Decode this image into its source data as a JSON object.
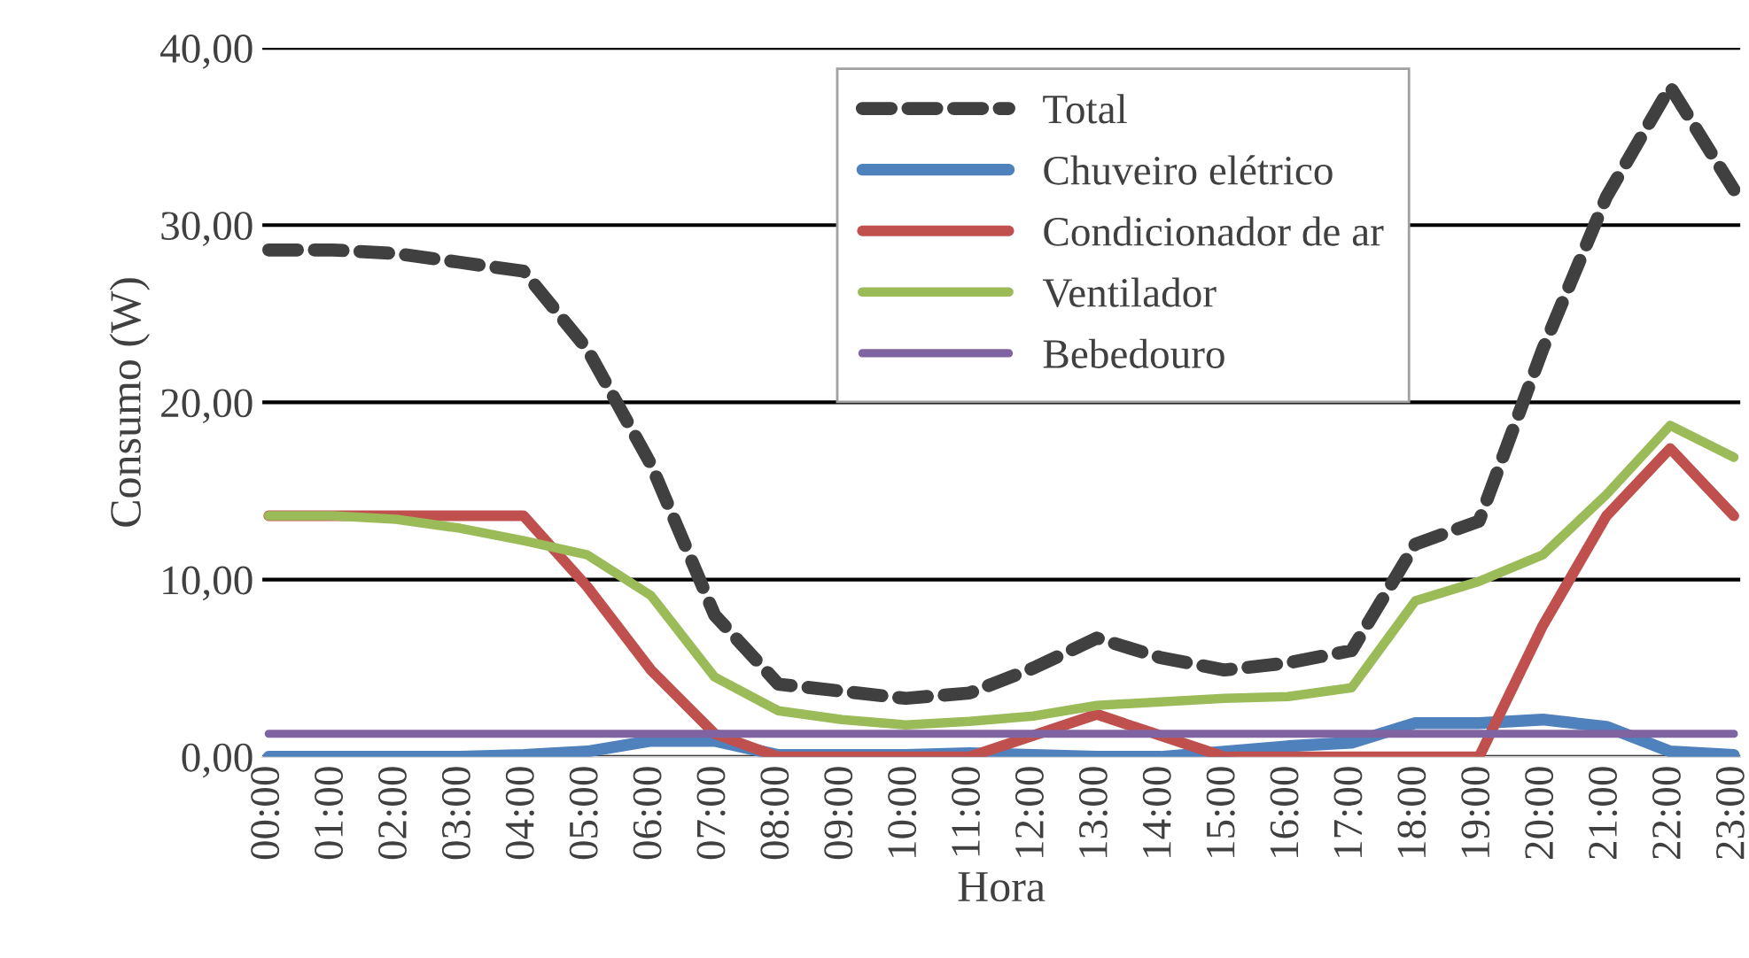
{
  "chart_data": {
    "type": "line",
    "xlabel": "Hora",
    "ylabel": "Consumo (W)",
    "categories": [
      "00:00",
      "01:00",
      "02:00",
      "03:00",
      "04:00",
      "05:00",
      "06:00",
      "07:00",
      "08:00",
      "09:00",
      "10:00",
      "11:00",
      "12:00",
      "13:00",
      "14:00",
      "15:00",
      "16:00",
      "17:00",
      "18:00",
      "19:00",
      "20:00",
      "21:00",
      "22:00",
      "23:00"
    ],
    "series": [
      {
        "name": "Total",
        "color": "#404040",
        "line_style": "dashed",
        "values": [
          28.6,
          28.6,
          28.4,
          27.9,
          27.4,
          23.0,
          16.5,
          8.0,
          4.1,
          3.7,
          3.3,
          3.6,
          5.0,
          6.7,
          5.6,
          4.9,
          5.3,
          6.0,
          12.0,
          13.3,
          23.0,
          31.6,
          37.8,
          32.0
        ]
      },
      {
        "name": "Chuveiro elétrico",
        "color": "#4f81bd",
        "line_style": "solid",
        "values": [
          0,
          0,
          0,
          0,
          0.1,
          0.3,
          0.9,
          0.9,
          0.1,
          0.1,
          0.1,
          0.2,
          0.1,
          0,
          0,
          0.3,
          0.6,
          0.8,
          1.9,
          1.9,
          2.1,
          1.7,
          0.3,
          0.1
        ]
      },
      {
        "name": "Condicionador de ar",
        "color": "#c0504d",
        "line_style": "solid",
        "values": [
          13.6,
          13.6,
          13.6,
          13.6,
          13.6,
          9.6,
          4.9,
          1.3,
          0,
          0,
          0,
          0,
          1.2,
          2.4,
          1.2,
          0,
          0,
          0,
          0,
          0,
          7.4,
          13.6,
          17.4,
          13.6
        ]
      },
      {
        "name": "Ventilador",
        "color": "#9bbb59",
        "line_style": "solid",
        "values": [
          13.6,
          13.6,
          13.4,
          12.9,
          12.2,
          11.4,
          9.1,
          4.5,
          2.6,
          2.1,
          1.8,
          2.0,
          2.3,
          2.9,
          3.1,
          3.3,
          3.4,
          3.9,
          8.8,
          9.9,
          11.4,
          14.8,
          18.7,
          16.9
        ]
      },
      {
        "name": "Bebedouro",
        "color": "#8064a2",
        "line_style": "solid",
        "values": [
          1.3,
          1.3,
          1.3,
          1.3,
          1.3,
          1.3,
          1.3,
          1.3,
          1.3,
          1.3,
          1.3,
          1.3,
          1.3,
          1.3,
          1.3,
          1.3,
          1.3,
          1.3,
          1.3,
          1.3,
          1.3,
          1.3,
          1.3,
          1.3
        ]
      }
    ],
    "ylim": [
      0,
      40
    ],
    "yticks": [
      {
        "value": 0,
        "label": "0,00"
      },
      {
        "value": 10,
        "label": "10,00"
      },
      {
        "value": 20,
        "label": "20,00"
      },
      {
        "value": 30,
        "label": "30,00"
      },
      {
        "value": 40,
        "label": "40,00"
      }
    ],
    "grid": "y",
    "legend": "top right",
    "marker": "none"
  }
}
